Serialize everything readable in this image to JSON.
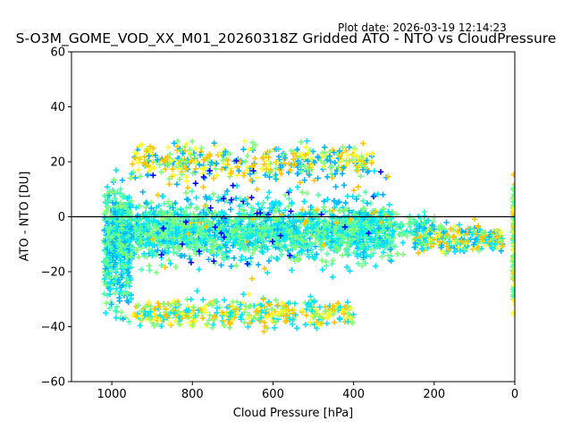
{
  "header": {
    "plot_date": "Plot date: 2026-03-19 12:14:23"
  },
  "chart_data": {
    "type": "scatter",
    "title": "S-O3M_GOME_VOD_XX_M01_20260318Z Gridded ATO - NTO vs CloudPressure",
    "xlabel": "Cloud Pressure [hPa]",
    "ylabel": "ATO - NTO [DU]",
    "xlim": [
      1100,
      0
    ],
    "ylim": [
      -60,
      60
    ],
    "xticks": [
      1000,
      800,
      600,
      400,
      200,
      0
    ],
    "yticks": [
      60,
      40,
      20,
      0,
      -20,
      -40,
      -60
    ],
    "xtick_labels": [
      "1000",
      "800",
      "600",
      "400",
      "200",
      "0"
    ],
    "ytick_labels": [
      "60",
      "40",
      "20",
      "0",
      "−20",
      "−40",
      "−60"
    ],
    "reference_line": {
      "y": 0,
      "color": "#000000"
    },
    "marker": "+",
    "colors": {
      "green": "#7dff7a",
      "aqua": "#4dffb0",
      "cyan": "#00e5ff",
      "deepskyblue": "#00b4ff",
      "yellow": "#ffff33",
      "gold": "#ffc400",
      "blue": "#0000ff"
    },
    "point_clusters": [
      {
        "x_range": [
          1000,
          300
        ],
        "y_center": -5,
        "y_spread": 22,
        "colors": [
          "green",
          "aqua",
          "cyan",
          "deepskyblue"
        ],
        "count": 1300
      },
      {
        "x_range": [
          1000,
          200
        ],
        "y_center": -5,
        "y_spread": 14,
        "colors": [
          "green",
          "aqua",
          "cyan"
        ],
        "count": 700
      },
      {
        "x_range": [
          950,
          350
        ],
        "y_center": 20,
        "y_spread": 12,
        "colors": [
          "yellow",
          "gold",
          "deepskyblue",
          "green"
        ],
        "count": 420
      },
      {
        "x_range": [
          950,
          400
        ],
        "y_center": -35,
        "y_spread": 10,
        "colors": [
          "yellow",
          "gold",
          "green",
          "cyan"
        ],
        "count": 420
      },
      {
        "x_range": [
          1020,
          950
        ],
        "y_center": -10,
        "y_spread": 45,
        "colors": [
          "cyan",
          "aqua",
          "green",
          "deepskyblue"
        ],
        "count": 450
      },
      {
        "x_range": [
          250,
          30
        ],
        "y_center": -8,
        "y_spread": 10,
        "colors": [
          "cyan",
          "green",
          "gold",
          "yellow",
          "deepskyblue"
        ],
        "count": 260
      },
      {
        "x_range": [
          5,
          0
        ],
        "y_center": -10,
        "y_spread": 50,
        "colors": [
          "aqua",
          "green",
          "gold",
          "yellow"
        ],
        "count": 130
      },
      {
        "x_range": [
          900,
          300
        ],
        "y_center": 0,
        "y_spread": 40,
        "colors": [
          "deepskyblue",
          "cyan",
          "blue",
          "gold"
        ],
        "count": 160
      }
    ]
  }
}
